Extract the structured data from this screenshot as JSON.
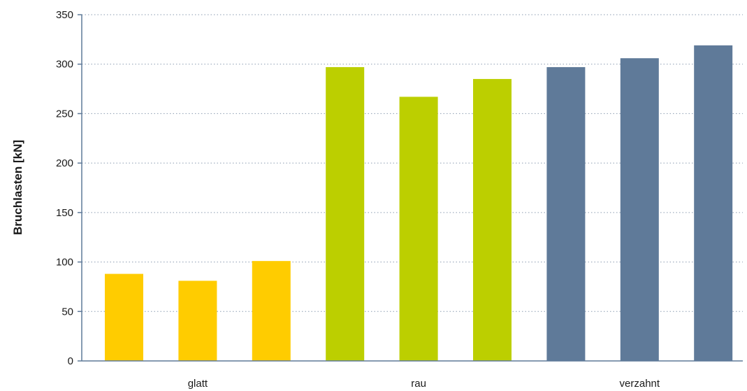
{
  "chart_data": {
    "type": "bar",
    "title": "",
    "xlabel": "",
    "ylabel": "Bruchlasten [kN]",
    "ylim": [
      0,
      350
    ],
    "yticks": [
      0,
      50,
      100,
      150,
      200,
      250,
      300,
      350
    ],
    "grid": "horizontal-dotted",
    "legend": "none",
    "groups": [
      {
        "label": "glatt",
        "color": "#ffcc00",
        "values": [
          88,
          81,
          101
        ]
      },
      {
        "label": "rau",
        "color": "#bccf00",
        "values": [
          297,
          267,
          285
        ]
      },
      {
        "label": "verzahnt",
        "color": "#5f7a99",
        "values": [
          297,
          306,
          319
        ]
      }
    ]
  }
}
